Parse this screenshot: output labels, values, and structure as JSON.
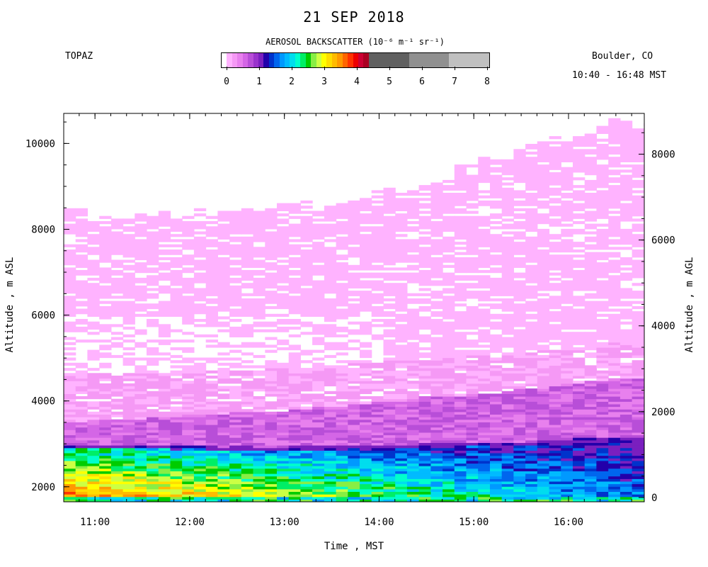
{
  "header": {
    "title": "21 SEP 2018",
    "instrument": "TOPAZ",
    "location": "Boulder, CO",
    "time_range": "10:40 - 16:48 MST"
  },
  "colorbar": {
    "title": "AEROSOL BACKSCATTER (10⁻⁶ m⁻¹ sr⁻¹)",
    "tick_labels": [
      "0",
      "1",
      "2",
      "3",
      "4",
      "5",
      "6",
      "7",
      "8"
    ],
    "fine_colors": [
      "#ffffff",
      "#ffb3ff",
      "#f599f5",
      "#e880ee",
      "#d466e6",
      "#b84ed8",
      "#9a33cc",
      "#7a1fbf",
      "#2200aa",
      "#0033cc",
      "#0066ee",
      "#0099ff",
      "#00bbff",
      "#00ddee",
      "#00ffcc",
      "#00ee66",
      "#00cc00",
      "#88ee44",
      "#ccff44",
      "#ffff00",
      "#ffdd00",
      "#ffbb00",
      "#ff9900",
      "#ff6600",
      "#ff3300",
      "#ee0000",
      "#cc0033",
      "#aa0022"
    ],
    "coarse_colors": [
      "#606060",
      "#909090",
      "#c0c0c0"
    ]
  },
  "chart_data": {
    "type": "heatmap",
    "title": "21 SEP 2018",
    "xlabel": "Time , MST",
    "ylabel": "Altitude , m ASL",
    "ylabel_right": "Altitude , m AGL",
    "x_tick_labels": [
      "11:00",
      "12:00",
      "13:00",
      "14:00",
      "15:00",
      "16:00"
    ],
    "x_ticks_hours": [
      11,
      12,
      13,
      14,
      15,
      16
    ],
    "xlim_hours": [
      10.67,
      16.8
    ],
    "y_ticks_left": [
      2000,
      4000,
      6000,
      8000,
      10000
    ],
    "y_tick_labels_left": [
      "2000",
      "4000",
      "6000",
      "8000",
      "10000"
    ],
    "ylim_left": [
      1650,
      10700
    ],
    "y_ticks_right": [
      0,
      2000,
      4000,
      6000,
      8000
    ],
    "y_tick_labels_right": [
      "0",
      "2000",
      "4000",
      "6000",
      "8000"
    ],
    "ylim_right": [
      -100,
      8950
    ],
    "colorbar_range": [
      0,
      8
    ],
    "profiles": [
      {
        "t": 10.75,
        "top": 8450,
        "boundary": 3000
      },
      {
        "t": 11.0,
        "top": 8300,
        "boundary": 2990
      },
      {
        "t": 11.25,
        "top": 8300,
        "boundary": 2985
      },
      {
        "t": 11.5,
        "top": 8350,
        "boundary": 2990
      },
      {
        "t": 11.75,
        "top": 8300,
        "boundary": 2980
      },
      {
        "t": 12.0,
        "top": 8350,
        "boundary": 2970
      },
      {
        "t": 12.25,
        "top": 8380,
        "boundary": 2960
      },
      {
        "t": 12.5,
        "top": 8350,
        "boundary": 2940
      },
      {
        "t": 12.75,
        "top": 8400,
        "boundary": 2930
      },
      {
        "t": 13.0,
        "top": 8500,
        "boundary": 2940
      },
      {
        "t": 13.25,
        "top": 8500,
        "boundary": 2950
      },
      {
        "t": 13.5,
        "top": 8600,
        "boundary": 2960
      },
      {
        "t": 13.75,
        "top": 8700,
        "boundary": 2980
      },
      {
        "t": 14.0,
        "top": 8800,
        "boundary": 2990
      },
      {
        "t": 14.25,
        "top": 8900,
        "boundary": 3000
      },
      {
        "t": 14.5,
        "top": 9050,
        "boundary": 3010
      },
      {
        "t": 14.75,
        "top": 9300,
        "boundary": 3020
      },
      {
        "t": 15.0,
        "top": 9500,
        "boundary": 3030
      },
      {
        "t": 15.25,
        "top": 9700,
        "boundary": 3040
      },
      {
        "t": 15.5,
        "top": 9850,
        "boundary": 3060
      },
      {
        "t": 15.75,
        "top": 10000,
        "boundary": 3080
      },
      {
        "t": 16.0,
        "top": 10150,
        "boundary": 3100
      },
      {
        "t": 16.25,
        "top": 10300,
        "boundary": 3130
      },
      {
        "t": 16.5,
        "top": 10450,
        "boundary": 3160
      },
      {
        "t": 16.75,
        "top": 10350,
        "boundary": 3180
      }
    ]
  }
}
